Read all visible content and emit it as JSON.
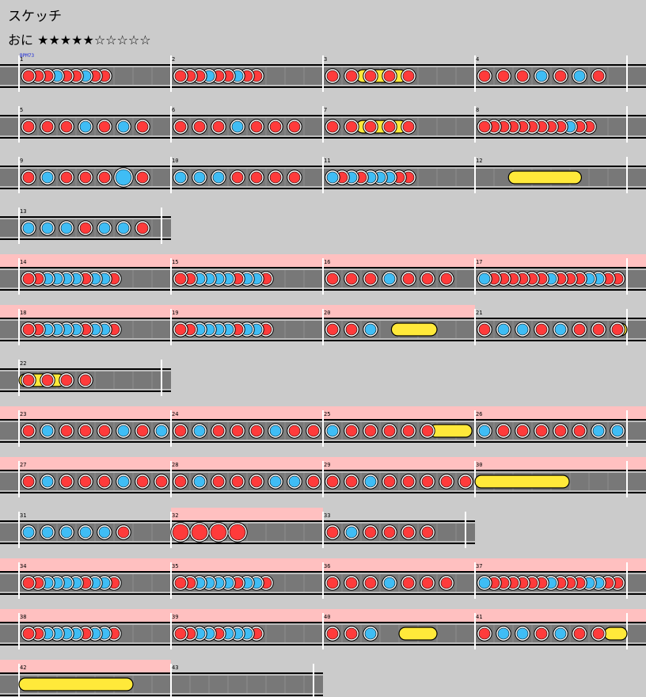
{
  "song": {
    "title": "スケッチ"
  },
  "difficulty": {
    "label": "おに",
    "stars": "★★★★★☆☆☆☆☆",
    "level": 5
  },
  "bpm_label": "BPM73",
  "colors": {
    "background": "#cbcbcb",
    "lane": "#787878",
    "gogo": "#ffc0c0",
    "don": "#ff3b3b",
    "ka": "#3fbdf5",
    "roll": "#ffe93a"
  },
  "legend": {
    "d": "don",
    "k": "ka",
    "D": "big-don",
    "K": "big-ka",
    "r": "roll"
  },
  "rows": [
    {
      "measures": [
        {
          "number": "1",
          "beats": 8,
          "notes": "dddkddkdd"
        },
        {
          "number": "2",
          "beats": 8,
          "notes": "dddkddkdd"
        },
        {
          "number": "3",
          "beats": 8,
          "notes": "ddddd"
        },
        {
          "number": "4",
          "beats": 8,
          "notes": "dddkdkd"
        }
      ],
      "rolls": [
        {
          "start": 2.22,
          "end": 2.55
        }
      ]
    },
    {
      "measures": [
        {
          "number": "5",
          "beats": 8,
          "notes": "dddkdkd"
        },
        {
          "number": "6",
          "beats": 8,
          "notes": "dddkddd"
        },
        {
          "number": "7",
          "beats": 8,
          "notes": "ddddd"
        },
        {
          "number": "8",
          "beats": 8,
          "notes": "dddddddddkdd"
        }
      ],
      "rolls": [
        {
          "start": 2.22,
          "end": 2.55
        }
      ]
    },
    {
      "measures": [
        {
          "number": "9",
          "beats": 8,
          "notes": "dkdddKd"
        },
        {
          "number": "10",
          "beats": 8,
          "notes": "kkkdddd"
        },
        {
          "number": "11",
          "beats": 8,
          "notes": "kdkdkkkdd"
        },
        {
          "number": "12",
          "beats": 8,
          "notes": ""
        }
      ],
      "rolls": [
        {
          "start": 3.22,
          "end": 3.7
        }
      ]
    },
    {
      "measures": [
        {
          "number": "13",
          "beats": 8,
          "notes": "kkkdkkd"
        }
      ],
      "rolls": []
    },
    {
      "measures": [
        {
          "number": "14",
          "beats": 8,
          "notes": "ddkkkkdkkd"
        },
        {
          "number": "15",
          "beats": 8,
          "notes": "ddkkkkdkkd"
        },
        {
          "number": "16",
          "beats": 8,
          "notes": "dddkddd"
        },
        {
          "number": "17",
          "beats": 8,
          "notes": "kddddddkdddkkdd"
        }
      ],
      "gogo": [
        {
          "start": 0,
          "end": 4
        }
      ],
      "rolls": []
    },
    {
      "measures": [
        {
          "number": "18",
          "beats": 8,
          "notes": "ddkkkkdkkd"
        },
        {
          "number": "19",
          "beats": 8,
          "notes": "ddkkkkdkkd"
        },
        {
          "number": "20",
          "beats": 8,
          "notes": "ddk"
        },
        {
          "number": "21",
          "beats": 8,
          "notes": "dkkdkddd"
        }
      ],
      "gogo": [
        {
          "start": 0,
          "end": 3
        }
      ],
      "rolls": [
        {
          "start": 2.45,
          "end": 2.75
        },
        {
          "start": 3.9,
          "end": 4
        }
      ]
    },
    {
      "measures": [
        {
          "number": "22",
          "beats": 8,
          "notes": "dddd"
        }
      ],
      "rolls": [
        {
          "start": 0.0,
          "end": 0.3
        }
      ]
    },
    {
      "measures": [
        {
          "number": "23",
          "beats": 8,
          "notes": "dkdddkdk"
        },
        {
          "number": "24",
          "beats": 8,
          "notes": "dkdddkdd"
        },
        {
          "number": "25",
          "beats": 8,
          "notes": "kddddd"
        },
        {
          "number": "26",
          "beats": 8,
          "notes": "kdddddkk"
        }
      ],
      "gogo": [
        {
          "start": 0,
          "end": 4
        }
      ],
      "rolls": [
        {
          "start": 2.7,
          "end": 2.98
        }
      ]
    },
    {
      "measures": [
        {
          "number": "27",
          "beats": 8,
          "notes": "dkdddkdd"
        },
        {
          "number": "28",
          "beats": 8,
          "notes": "dkdddkkd"
        },
        {
          "number": "29",
          "beats": 8,
          "notes": "ddkddddd"
        },
        {
          "number": "30",
          "beats": 8,
          "notes": ""
        }
      ],
      "gogo": [
        {
          "start": 0,
          "end": 4
        }
      ],
      "rolls": [
        {
          "start": 3.0,
          "end": 3.62
        }
      ]
    },
    {
      "measures": [
        {
          "number": "31",
          "beats": 8,
          "notes": "kkkkkd"
        },
        {
          "number": "32",
          "beats": 8,
          "notes": "DDDD"
        },
        {
          "number": "33",
          "beats": 8,
          "notes": "dkdddd"
        }
      ],
      "gogo": [
        {
          "start": 1,
          "end": 2
        }
      ],
      "rolls": []
    },
    {
      "measures": [
        {
          "number": "34",
          "beats": 8,
          "notes": "ddkkkkdkkd"
        },
        {
          "number": "35",
          "beats": 8,
          "notes": "ddkkkkdkkd"
        },
        {
          "number": "36",
          "beats": 8,
          "notes": "dddkddd"
        },
        {
          "number": "37",
          "beats": 8,
          "notes": "kddddddkdddkkdd"
        }
      ],
      "gogo": [
        {
          "start": 0,
          "end": 4
        }
      ],
      "rolls": []
    },
    {
      "measures": [
        {
          "number": "38",
          "beats": 8,
          "notes": "ddkkkkdkkd"
        },
        {
          "number": "39",
          "beats": 8,
          "notes": "ddkkdkkkd"
        },
        {
          "number": "40",
          "beats": 8,
          "notes": "ddk"
        },
        {
          "number": "41",
          "beats": 8,
          "notes": "dkkdkdd"
        }
      ],
      "gogo": [
        {
          "start": 0,
          "end": 4
        }
      ],
      "rolls": [
        {
          "start": 2.5,
          "end": 2.75
        },
        {
          "start": 3.85,
          "end": 4
        }
      ]
    },
    {
      "measures": [
        {
          "number": "42",
          "beats": 8,
          "notes": ""
        },
        {
          "number": "43",
          "beats": 8,
          "notes": ""
        }
      ],
      "gogo": [
        {
          "start": 0,
          "end": 1
        }
      ],
      "rolls": [
        {
          "start": 0.0,
          "end": 0.75
        }
      ]
    }
  ]
}
